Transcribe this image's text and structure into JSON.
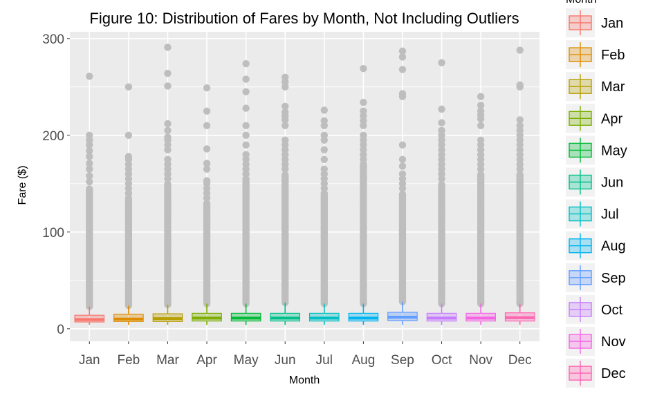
{
  "chart_data": {
    "type": "boxplot",
    "title": "Figure 10: Distribution of Fares by Month, Not Including Outliers",
    "xlabel": "Month",
    "ylabel": "Fare ($)",
    "ylim": [
      -13,
      307
    ],
    "yticks": [
      0,
      100,
      200,
      300
    ],
    "grid": true,
    "legend_title": "Month",
    "legend_position": "right",
    "outlier_color": "#bebebe",
    "categories": [
      "Jan",
      "Feb",
      "Mar",
      "Apr",
      "May",
      "Jun",
      "Jul",
      "Aug",
      "Sep",
      "Oct",
      "Nov",
      "Dec"
    ],
    "series": [
      {
        "name": "Jan",
        "color": "#F8766D",
        "whisker_low": 4,
        "q1": 7,
        "median": 9.5,
        "q3": 14,
        "whisker_high": 23,
        "outliers_dense_to": 145,
        "outliers": [
          152,
          158,
          165,
          171,
          178,
          184,
          190,
          195,
          200,
          261
        ]
      },
      {
        "name": "Feb",
        "color": "#DE8C00",
        "whisker_low": 4,
        "q1": 7.5,
        "median": 10,
        "q3": 15,
        "whisker_high": 24,
        "outliers_dense_to": 135,
        "outliers": [
          140,
          145,
          150,
          155,
          160,
          165,
          170,
          175,
          178,
          200,
          250
        ]
      },
      {
        "name": "Mar",
        "color": "#B79F00",
        "whisker_low": 4,
        "q1": 7.5,
        "median": 10.5,
        "q3": 15.5,
        "whisker_high": 25,
        "outliers_dense_to": 150,
        "outliers": [
          155,
          160,
          165,
          170,
          175,
          185,
          190,
          195,
          198,
          205,
          212,
          251,
          264,
          291
        ]
      },
      {
        "name": "Apr",
        "color": "#7CAE00",
        "whisker_low": 4,
        "q1": 8,
        "median": 11,
        "q3": 16,
        "whisker_high": 26,
        "outliers_dense_to": 130,
        "outliers": [
          135,
          140,
          145,
          150,
          153,
          165,
          171,
          186,
          210,
          225,
          249
        ]
      },
      {
        "name": "May",
        "color": "#00BA38",
        "whisker_low": 4,
        "q1": 8,
        "median": 11,
        "q3": 16,
        "whisker_high": 26,
        "outliers_dense_to": 155,
        "outliers": [
          160,
          165,
          170,
          175,
          180,
          190,
          200,
          210,
          228,
          245,
          258,
          274
        ]
      },
      {
        "name": "Jun",
        "color": "#00C08B",
        "whisker_low": 4,
        "q1": 8,
        "median": 11,
        "q3": 16,
        "whisker_high": 27,
        "outliers_dense_to": 160,
        "outliers": [
          165,
          170,
          175,
          180,
          185,
          190,
          195,
          210,
          216,
          220,
          224,
          230,
          250,
          255,
          260
        ]
      },
      {
        "name": "Jul",
        "color": "#00BFC4",
        "whisker_low": 4,
        "q1": 8,
        "median": 11,
        "q3": 16,
        "whisker_high": 26,
        "outliers_dense_to": 140,
        "outliers": [
          145,
          150,
          155,
          160,
          165,
          175,
          185,
          195,
          200,
          210,
          215,
          226
        ]
      },
      {
        "name": "Aug",
        "color": "#00B4F0",
        "whisker_low": 4,
        "q1": 8,
        "median": 11,
        "q3": 16,
        "whisker_high": 26,
        "outliers_dense_to": 170,
        "outliers": [
          175,
          180,
          185,
          190,
          195,
          200,
          210,
          215,
          220,
          225,
          234,
          269
        ]
      },
      {
        "name": "Sep",
        "color": "#619CFF",
        "whisker_low": 4,
        "q1": 8.5,
        "median": 12,
        "q3": 17,
        "whisker_high": 28,
        "outliers_dense_to": 140,
        "outliers": [
          145,
          150,
          155,
          160,
          168,
          175,
          190,
          240,
          243,
          268,
          281,
          287
        ]
      },
      {
        "name": "Oct",
        "color": "#C77CFF",
        "whisker_low": 4,
        "q1": 8,
        "median": 11,
        "q3": 16,
        "whisker_high": 26,
        "outliers_dense_to": 150,
        "outliers": [
          155,
          160,
          165,
          170,
          175,
          180,
          185,
          190,
          195,
          200,
          205,
          213,
          227,
          275
        ]
      },
      {
        "name": "Nov",
        "color": "#F564E3",
        "whisker_low": 4,
        "q1": 8,
        "median": 11,
        "q3": 16,
        "whisker_high": 26,
        "outliers_dense_to": 160,
        "outliers": [
          165,
          170,
          175,
          180,
          185,
          190,
          195,
          210,
          217,
          221,
          225,
          231,
          240
        ]
      },
      {
        "name": "Dec",
        "color": "#FF64B0",
        "whisker_low": 4,
        "q1": 8,
        "median": 11.5,
        "q3": 16.5,
        "whisker_high": 26,
        "outliers_dense_to": 160,
        "outliers": [
          165,
          170,
          175,
          180,
          185,
          190,
          195,
          200,
          205,
          210,
          216,
          250,
          252,
          288
        ]
      }
    ]
  }
}
